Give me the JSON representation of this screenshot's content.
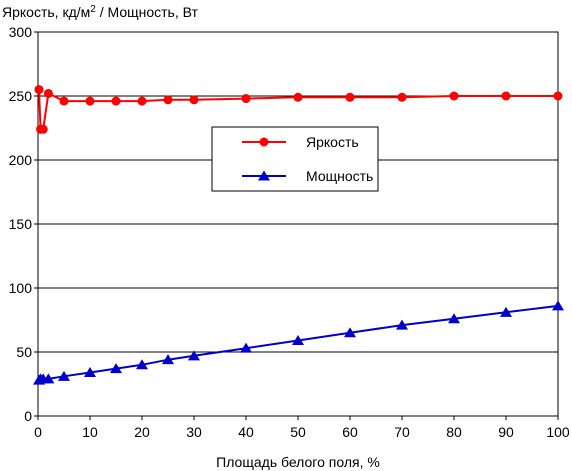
{
  "chart_data": {
    "type": "line",
    "ylabel_main": "Яркость, кд/м",
    "ylabel_sup": "2",
    "ylabel_rest": " / Мощность, Вт",
    "xlabel": "Площадь белого поля, %",
    "xlim": [
      0,
      100
    ],
    "ylim": [
      0,
      300
    ],
    "xticks": [
      0,
      10,
      20,
      30,
      40,
      50,
      60,
      70,
      80,
      90,
      100
    ],
    "yticks": [
      0,
      50,
      100,
      150,
      200,
      250,
      300
    ],
    "grid": "horizontal",
    "legend_position": "center",
    "series": [
      {
        "name": "Яркость",
        "color": "#ff0000",
        "marker": "circle",
        "points": [
          [
            0.2,
            255
          ],
          [
            0.5,
            224
          ],
          [
            1,
            224
          ],
          [
            2,
            252
          ],
          [
            5,
            246
          ],
          [
            10,
            246
          ],
          [
            15,
            246
          ],
          [
            20,
            246
          ],
          [
            25,
            247
          ],
          [
            30,
            247
          ],
          [
            40,
            248
          ],
          [
            50,
            249
          ],
          [
            60,
            249
          ],
          [
            70,
            249
          ],
          [
            80,
            250
          ],
          [
            90,
            250
          ],
          [
            100,
            250
          ]
        ]
      },
      {
        "name": "Мощность",
        "color": "#0000cc",
        "marker": "triangle",
        "points": [
          [
            0.2,
            28
          ],
          [
            0.5,
            29
          ],
          [
            1,
            29
          ],
          [
            2,
            29
          ],
          [
            5,
            31
          ],
          [
            10,
            34
          ],
          [
            15,
            37
          ],
          [
            20,
            40
          ],
          [
            25,
            44
          ],
          [
            30,
            47
          ],
          [
            40,
            53
          ],
          [
            50,
            59
          ],
          [
            60,
            65
          ],
          [
            70,
            71
          ],
          [
            80,
            76
          ],
          [
            90,
            81
          ],
          [
            100,
            86
          ]
        ]
      }
    ]
  }
}
